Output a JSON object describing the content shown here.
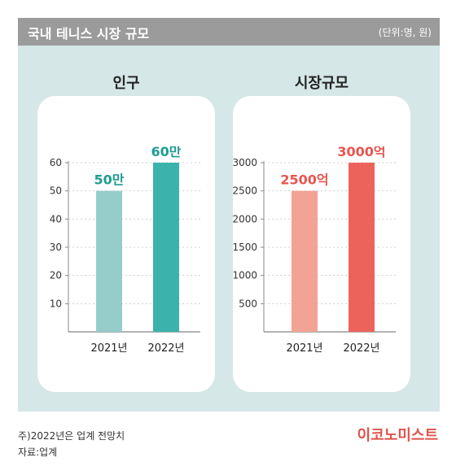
{
  "header": {
    "title": "국내 테니스 시장 규모",
    "unit": "(단위:명, 원)"
  },
  "charts": [
    {
      "title": "인구",
      "chart_data": {
        "type": "bar",
        "categories": [
          "2021년",
          "2022년"
        ],
        "values": [
          50,
          60
        ],
        "labels": [
          "50만",
          "60만"
        ],
        "yticks": [
          10,
          20,
          30,
          40,
          50,
          60
        ],
        "ylim": [
          0,
          60
        ],
        "colors": [
          "#96cdcb",
          "#3bb2ac"
        ],
        "label_color": "#1e9c92"
      }
    },
    {
      "title": "시장규모",
      "chart_data": {
        "type": "bar",
        "categories": [
          "2021년",
          "2022년"
        ],
        "values": [
          2500,
          3000
        ],
        "labels": [
          "2500억",
          "3000억"
        ],
        "yticks": [
          500,
          1000,
          1500,
          2000,
          2500,
          3000
        ],
        "ylim": [
          0,
          3000
        ],
        "colors": [
          "#f2a394",
          "#ec635c"
        ],
        "label_color": "#e8554e"
      }
    }
  ],
  "footer": {
    "note1": "주)2022년은 업계 전망치",
    "note2": "자료:업계",
    "logo": "이코노미스트"
  }
}
